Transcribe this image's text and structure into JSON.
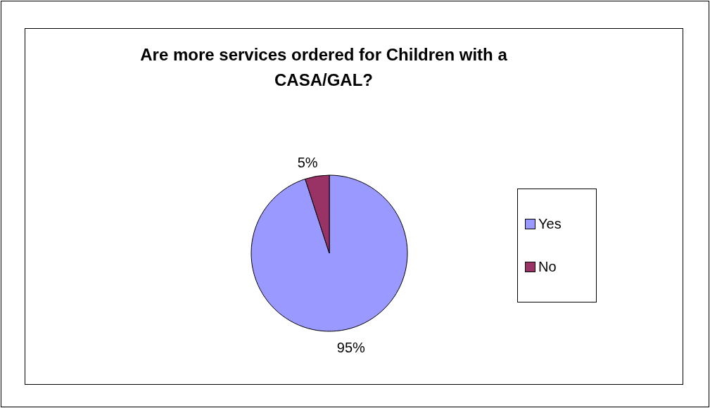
{
  "chart_data": {
    "type": "pie",
    "title": "Are more services ordered for Children with a CASA/GAL?",
    "categories": [
      "Yes",
      "No"
    ],
    "values": [
      95,
      5
    ],
    "colors": [
      "#9999ff",
      "#993366"
    ],
    "value_labels": [
      "95%",
      "5%"
    ],
    "legend": "right"
  }
}
